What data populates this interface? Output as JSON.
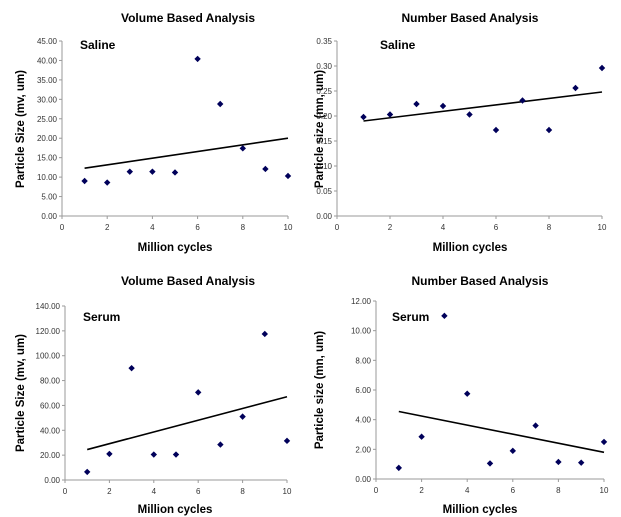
{
  "chart_data": [
    {
      "type": "scatter",
      "title": "Volume Based Analysis",
      "annotation": "Saline",
      "xlabel": "Million cycles",
      "ylabel": "Particle Size (mv, um)",
      "xlim": [
        0,
        10
      ],
      "ylim": [
        0,
        45
      ],
      "x_ticks": [
        "0",
        "2",
        "4",
        "6",
        "8",
        "10"
      ],
      "y_ticks": [
        "0.00",
        "5.00",
        "10.00",
        "15.00",
        "20.00",
        "25.00",
        "30.00",
        "35.00",
        "40.00",
        "45.00"
      ],
      "grid": false,
      "legend": "none",
      "point_color": "#00005a",
      "series": [
        {
          "x": [
            1,
            2,
            3,
            4,
            5,
            6,
            7,
            8,
            9,
            10
          ],
          "y": [
            9.0,
            8.6,
            11.4,
            11.4,
            11.2,
            40.4,
            28.8,
            17.4,
            12.1,
            10.3
          ]
        }
      ],
      "trendline": {
        "x": [
          1,
          10
        ],
        "y": [
          12.3,
          20.0
        ]
      }
    },
    {
      "type": "scatter",
      "title": "Number Based Analysis",
      "annotation": "Saline",
      "xlabel": "Million cycles",
      "ylabel": "Particle size (mn, um)",
      "xlim": [
        0,
        10
      ],
      "ylim": [
        0,
        0.35
      ],
      "x_ticks": [
        "0",
        "2",
        "4",
        "6",
        "8",
        "10"
      ],
      "y_ticks": [
        "0.00",
        "0.05",
        "0.10",
        "0.15",
        "0.20",
        "0.25",
        "0.30",
        "0.35"
      ],
      "grid": false,
      "legend": "none",
      "point_color": "#00005a",
      "series": [
        {
          "x": [
            1,
            2,
            3,
            4,
            5,
            6,
            7,
            8,
            9,
            10
          ],
          "y": [
            0.198,
            0.203,
            0.224,
            0.22,
            0.203,
            0.172,
            0.231,
            0.172,
            0.256,
            0.296
          ]
        }
      ],
      "trendline": {
        "x": [
          1,
          10
        ],
        "y": [
          0.19,
          0.248
        ]
      }
    },
    {
      "type": "scatter",
      "title": "Volume Based Analysis",
      "annotation": "Serum",
      "xlabel": "Million cycles",
      "ylabel": "Particle Size (mv, um)",
      "xlim": [
        0,
        10
      ],
      "ylim": [
        0,
        140
      ],
      "x_ticks": [
        "0",
        "2",
        "4",
        "6",
        "8",
        "10"
      ],
      "y_ticks": [
        "0.00",
        "20.00",
        "40.00",
        "60.00",
        "80.00",
        "100.00",
        "120.00",
        "140.00"
      ],
      "grid": false,
      "legend": "none",
      "point_color": "#00005a",
      "series": [
        {
          "x": [
            1,
            2,
            3,
            4,
            5,
            6,
            7,
            8,
            9,
            10
          ],
          "y": [
            6.5,
            21.0,
            90.0,
            20.5,
            20.5,
            70.5,
            28.5,
            51.0,
            117.5,
            31.5
          ]
        }
      ],
      "trendline": {
        "x": [
          1,
          10
        ],
        "y": [
          24.5,
          67.0
        ]
      }
    },
    {
      "type": "scatter",
      "title": "Number Based Analysis",
      "annotation": "Serum",
      "xlabel": "Million cycles",
      "ylabel": "Particle size (mn, um)",
      "xlim": [
        0,
        10
      ],
      "ylim": [
        0,
        12
      ],
      "x_ticks": [
        "0",
        "2",
        "4",
        "6",
        "8",
        "10"
      ],
      "y_ticks": [
        "0.00",
        "2.00",
        "4.00",
        "6.00",
        "8.00",
        "10.00",
        "12.00"
      ],
      "grid": false,
      "legend": "none",
      "point_color": "#00005a",
      "series": [
        {
          "x": [
            1,
            2,
            3,
            4,
            5,
            6,
            7,
            8,
            9,
            10
          ],
          "y": [
            0.75,
            2.85,
            11.0,
            5.75,
            1.05,
            1.9,
            3.6,
            1.15,
            1.1,
            2.5
          ]
        }
      ],
      "trendline": {
        "x": [
          1,
          10
        ],
        "y": [
          4.55,
          1.8
        ]
      }
    }
  ]
}
